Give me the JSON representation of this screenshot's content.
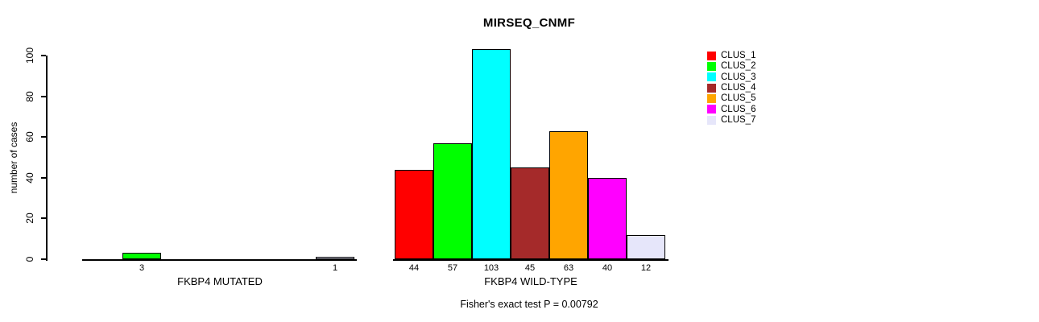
{
  "chart_data": {
    "type": "bar",
    "title": "MIRSEQ_CNMF",
    "ylabel": "number of cases",
    "xlabel": "",
    "ylim": [
      0,
      100
    ],
    "yticks": [
      0,
      20,
      40,
      60,
      80,
      100
    ],
    "grid": false,
    "legend_position": "right",
    "background": "#ffffff",
    "clusters": [
      {
        "name": "CLUS_1",
        "color": "#FF0000"
      },
      {
        "name": "CLUS_2",
        "color": "#00FF00"
      },
      {
        "name": "CLUS_3",
        "color": "#00FFFF"
      },
      {
        "name": "CLUS_4",
        "color": "#A52A2A"
      },
      {
        "name": "CLUS_5",
        "color": "#FFA500"
      },
      {
        "name": "CLUS_6",
        "color": "#FF00FF"
      },
      {
        "name": "CLUS_7",
        "color": "#E6E6FA"
      }
    ],
    "groups": [
      {
        "label": "FKBP4 MUTATED",
        "values": [
          0,
          3,
          0,
          0,
          0,
          0,
          1
        ],
        "bar_labels": [
          "",
          "3",
          "",
          "",
          "",
          "",
          "1"
        ]
      },
      {
        "label": "FKBP4 WILD-TYPE",
        "values": [
          44,
          57,
          103,
          45,
          63,
          40,
          12
        ],
        "bar_labels": [
          "44",
          "57",
          "103",
          "45",
          "63",
          "40",
          "12"
        ]
      }
    ],
    "annotation": "Fisher's exact test P = 0.00792"
  }
}
